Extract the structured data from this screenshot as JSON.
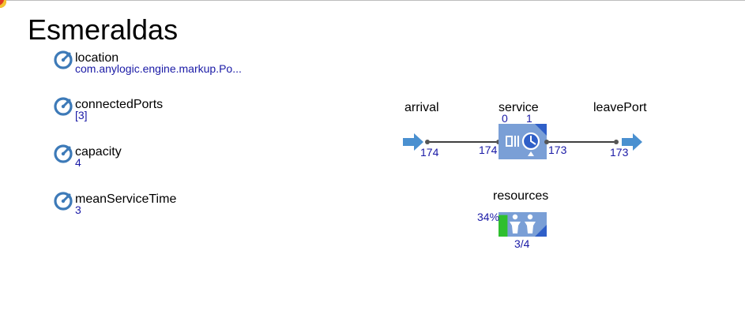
{
  "agent": {
    "title": "Esmeraldas"
  },
  "parameters": [
    {
      "name": "location",
      "value": "com.anylogic.engine.markup.Po...",
      "icon": "parameter-icon"
    },
    {
      "name": "connectedPorts",
      "value": "[3]",
      "icon": "parameter-icon"
    },
    {
      "name": "capacity",
      "value": "4",
      "icon": "parameter-icon"
    },
    {
      "name": "meanServiceTime",
      "value": "3",
      "icon": "parameter-icon"
    }
  ],
  "flowchart": {
    "arrival": {
      "label": "arrival",
      "out_count": "174",
      "icon": "enter-arrow-icon"
    },
    "service": {
      "label": "service",
      "queue_count": "0",
      "in_service_count": "1",
      "in_count": "174",
      "out_count": "173",
      "icon": "service-clock-icon"
    },
    "leavePort": {
      "label": "leavePort",
      "in_count": "173",
      "icon": "exit-arrow-icon"
    },
    "resources": {
      "label": "resources",
      "utilization": "34%",
      "utilization_fraction": 0.34,
      "busy_ratio": "3/4",
      "icon": "resource-pool-people-icon"
    }
  },
  "colors": {
    "parameter_icon": "#3d7ab8",
    "block_fill": "#7a9fd6",
    "block_dark": "#2f5fc8",
    "arrow": "#4a90d0",
    "connector": "#000000",
    "port_dot": "#555555",
    "utilization_fill": "#2fbf2f",
    "count_text": "#1a1aa6"
  }
}
